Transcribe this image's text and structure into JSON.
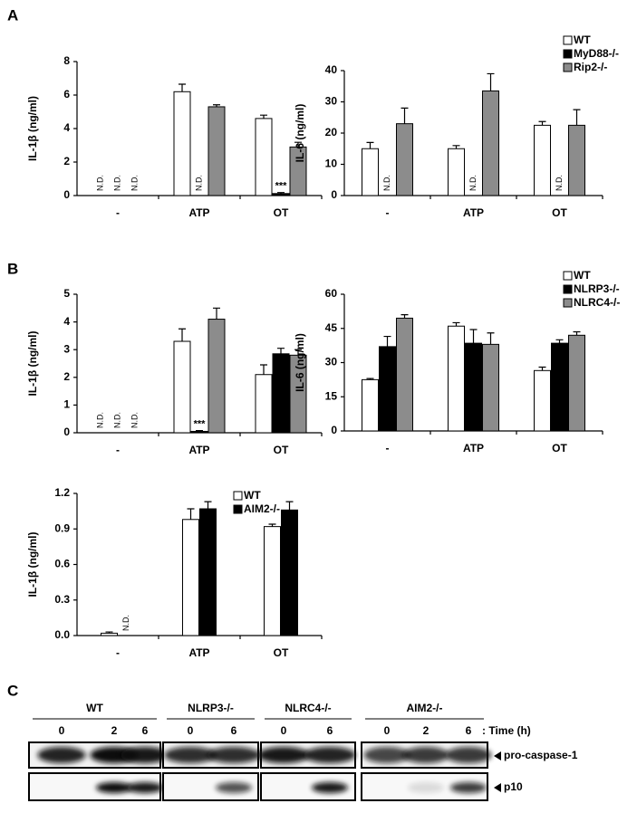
{
  "panel_labels": [
    "A",
    "B",
    "C"
  ],
  "chart_data": [
    {
      "type": "bar",
      "ylabel": "IL-1β (ng/ml)",
      "categories": [
        "-",
        "ATP",
        "OT"
      ],
      "ylim": [
        0,
        8
      ],
      "yticks": [
        0,
        2,
        4,
        6,
        8
      ],
      "series": [
        {
          "color": "#ffffff",
          "values": [
            null,
            6.2,
            4.6
          ],
          "errors": [
            null,
            0.45,
            0.2
          ],
          "value_labels": [
            "N.D.",
            null,
            null
          ]
        },
        {
          "color": "#000000",
          "values": [
            null,
            null,
            0.12
          ],
          "errors": [
            null,
            null,
            0.06
          ],
          "value_labels": [
            "N.D.",
            "N.D.",
            null
          ]
        },
        {
          "color": "#8c8c8c",
          "values": [
            null,
            5.3,
            2.9
          ],
          "errors": [
            null,
            0.12,
            0.28
          ],
          "value_labels": [
            "N.D.",
            null,
            null
          ]
        }
      ],
      "annotations": [
        {
          "text": "***",
          "category": 2,
          "series": 1
        }
      ]
    },
    {
      "type": "bar",
      "ylabel": "IL-6 (ng/ml)",
      "categories": [
        "-",
        "ATP",
        "OT"
      ],
      "ylim": [
        0,
        40
      ],
      "yticks": [
        0,
        10,
        20,
        30,
        40
      ],
      "series": [
        {
          "name": "WT",
          "color": "#ffffff",
          "values": [
            15,
            15,
            22.5
          ],
          "errors": [
            2,
            1,
            1.2
          ]
        },
        {
          "name": "MyD88-/-",
          "color": "#000000",
          "values": [
            null,
            null,
            null
          ],
          "errors": [
            null,
            null,
            null
          ],
          "value_labels": [
            "N.D.",
            "N.D.",
            "N.D."
          ]
        },
        {
          "name": "Rip2-/-",
          "color": "#8c8c8c",
          "values": [
            23,
            33.5,
            22.5
          ],
          "errors": [
            5,
            5.5,
            5
          ]
        }
      ]
    },
    {
      "type": "bar",
      "ylabel": "IL-1β (ng/ml)",
      "categories": [
        "-",
        "ATP",
        "OT"
      ],
      "ylim": [
        0,
        5
      ],
      "yticks": [
        0,
        1,
        2,
        3,
        4,
        5
      ],
      "series": [
        {
          "color": "#ffffff",
          "values": [
            null,
            3.3,
            2.1
          ],
          "errors": [
            null,
            0.45,
            0.35
          ],
          "value_labels": [
            "N.D.",
            null,
            null
          ]
        },
        {
          "color": "#000000",
          "values": [
            null,
            0.05,
            2.85
          ],
          "errors": [
            null,
            0.03,
            0.2
          ],
          "value_labels": [
            "N.D.",
            null,
            null
          ]
        },
        {
          "color": "#8c8c8c",
          "values": [
            null,
            4.1,
            2.8
          ],
          "errors": [
            null,
            0.4,
            0.2
          ],
          "value_labels": [
            "N.D.",
            null,
            null
          ]
        }
      ],
      "annotations": [
        {
          "text": "***",
          "category": 1,
          "series": 1
        }
      ]
    },
    {
      "type": "bar",
      "ylabel": "IL-6 (ng/ml)",
      "categories": [
        "-",
        "ATP",
        "OT"
      ],
      "ylim": [
        0,
        60
      ],
      "yticks": [
        0,
        15,
        30,
        45,
        60
      ],
      "series": [
        {
          "name": "WT",
          "color": "#ffffff",
          "values": [
            22.5,
            46,
            26.5
          ],
          "errors": [
            0.5,
            1.5,
            1.5
          ]
        },
        {
          "name": "NLRP3-/-",
          "color": "#000000",
          "values": [
            37,
            38.5,
            38.5
          ],
          "errors": [
            4.5,
            6,
            1.5
          ]
        },
        {
          "name": "NLRC4-/-",
          "color": "#8c8c8c",
          "values": [
            49.5,
            38,
            42
          ],
          "errors": [
            1.5,
            5,
            1.5
          ]
        }
      ]
    },
    {
      "type": "bar",
      "ylabel": "IL-1β (ng/ml)",
      "categories": [
        "-",
        "ATP",
        "OT"
      ],
      "ylim": [
        0,
        1.2
      ],
      "yticks": [
        {
          "value": 0,
          "label": "0.0"
        },
        0.3,
        0.6,
        0.9,
        1.2
      ],
      "series": [
        {
          "name": "WT",
          "color": "#ffffff",
          "values": [
            0.02,
            0.98,
            0.92
          ],
          "errors": [
            0.01,
            0.09,
            0.02
          ]
        },
        {
          "name": "AIM2-/-",
          "color": "#000000",
          "values": [
            null,
            1.07,
            1.06
          ],
          "errors": [
            null,
            0.06,
            0.07
          ],
          "value_labels": [
            "N.D.",
            null,
            null
          ]
        }
      ]
    }
  ],
  "blot": {
    "groups": [
      {
        "name": "WT",
        "lanes": [
          "0",
          "2",
          "6"
        ]
      },
      {
        "name": "NLRP3-/-",
        "lanes": [
          "0",
          "6"
        ]
      },
      {
        "name": "NLRC4-/-",
        "lanes": [
          "0",
          "6"
        ]
      },
      {
        "name": "AIM2-/-",
        "lanes": [
          "0",
          "2",
          "6"
        ]
      }
    ],
    "time_label": ": Time (h)",
    "bands": [
      "pro-caspase-1",
      "p10"
    ]
  }
}
